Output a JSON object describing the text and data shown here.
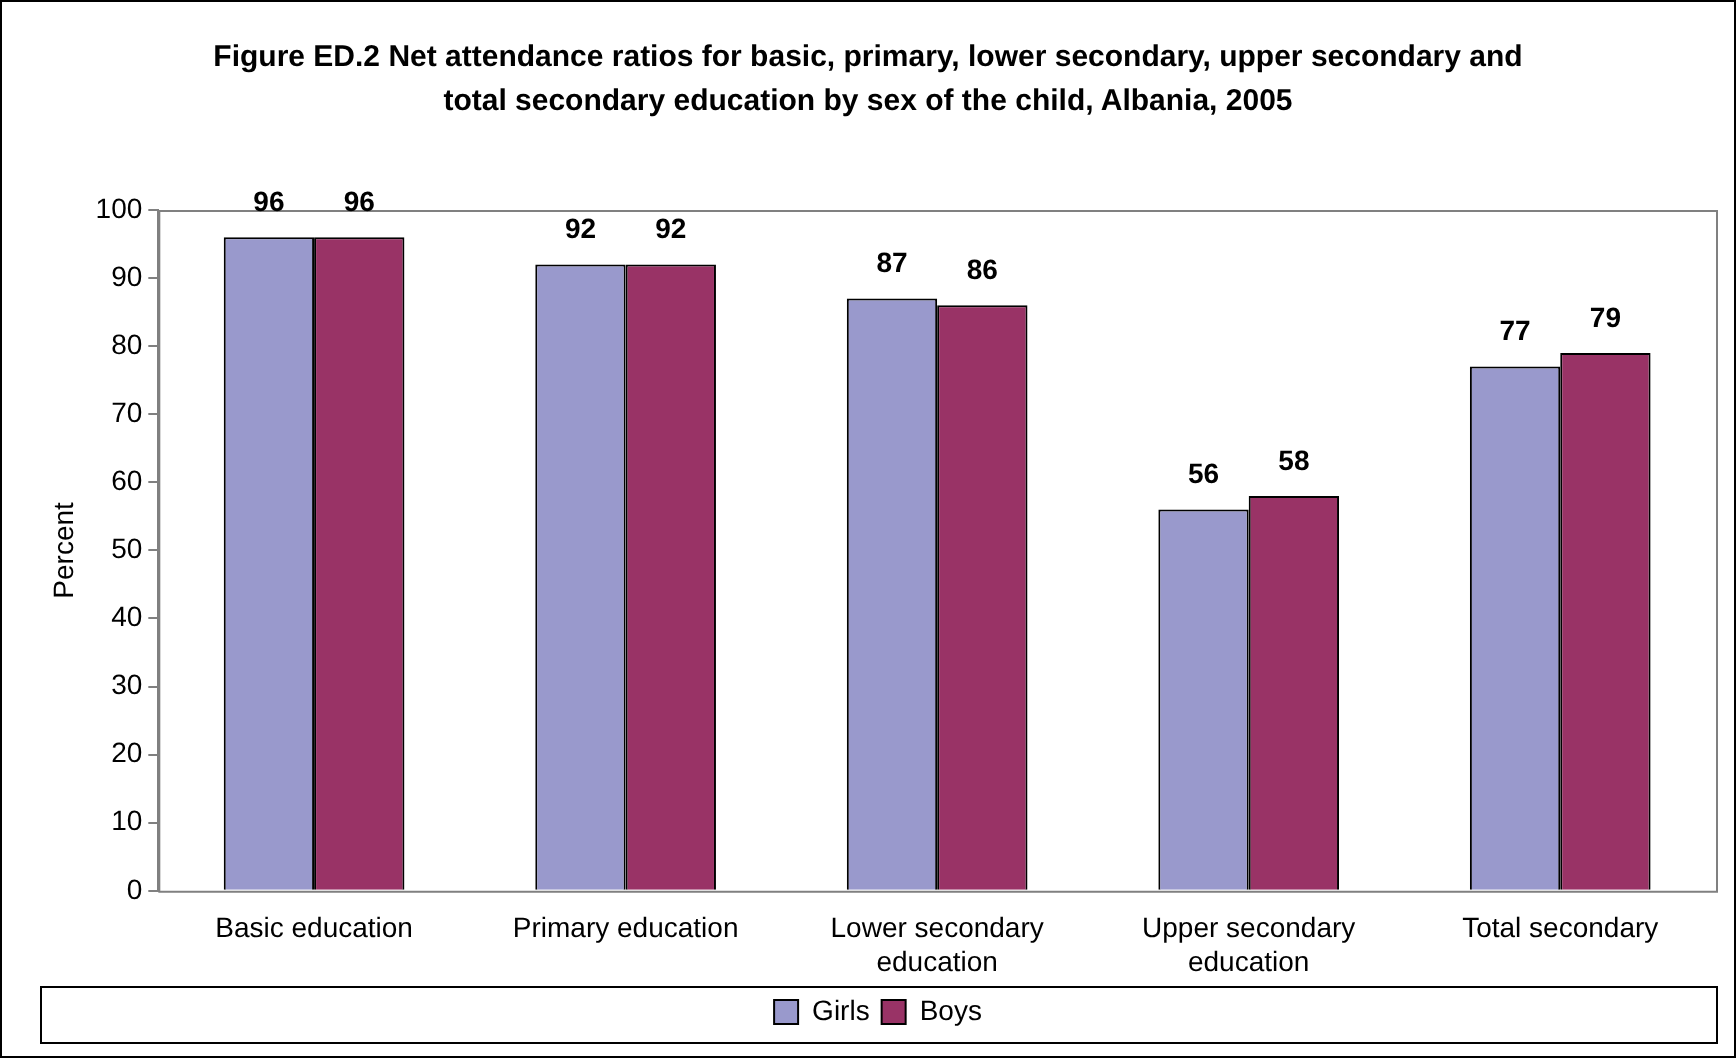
{
  "chart_data": {
    "type": "bar",
    "title": "Figure ED.2 Net attendance ratios for basic, primary, lower secondary, upper secondary and total secondary education by sex of the child, Albania, 2005",
    "ylabel": "Percent",
    "categories": [
      "Basic education",
      "Primary education",
      "Lower secondary education",
      "Upper secondary education",
      "Total secondary"
    ],
    "series": [
      {
        "name": "Girls",
        "color": "#9999cc",
        "values": [
          96,
          92,
          87,
          56,
          77
        ]
      },
      {
        "name": "Boys",
        "color": "#993366",
        "values": [
          96,
          92,
          86,
          58,
          79
        ]
      }
    ],
    "ylim": [
      0,
      100
    ],
    "yticks": [
      0,
      10,
      20,
      30,
      40,
      50,
      60,
      70,
      80,
      90,
      100
    ],
    "grid": false,
    "legend": "bottom",
    "data_labels": true
  }
}
